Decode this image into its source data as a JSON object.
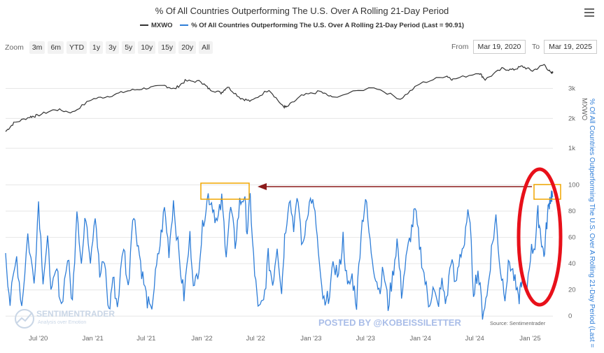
{
  "header": {
    "title": "% Of All Countries Outperforming The U.S. Over A Rolling 21-Day Period",
    "menu_icon": "hamburger-menu-icon"
  },
  "legend": {
    "items": [
      {
        "label": "MXWO",
        "color": "#333333"
      },
      {
        "label": "% Of All Countries Outperforming The U.S. Over A Rolling 21-Day Period (Last = 90.91)",
        "color": "#2f7ed8"
      }
    ]
  },
  "range_selector": {
    "zoom_label": "Zoom",
    "buttons": [
      "3m",
      "6m",
      "YTD",
      "1y",
      "3y",
      "5y",
      "10y",
      "15y",
      "20y",
      "All"
    ],
    "from_label": "From",
    "from_value": "Mar 19, 2020",
    "to_label": "To",
    "to_value": "Mar 19, 2025"
  },
  "watermark": {
    "brand": "SENTIMENTRADER",
    "tagline": "Analysis over Emotion",
    "posted_by": "POSTED BY @KOBEISSILETTER",
    "source": "Source: Sentimentrader"
  },
  "chart_data": [
    {
      "type": "line",
      "series": [
        {
          "name": "MXWO",
          "color": "#333333"
        }
      ],
      "ylabel": "MXWO",
      "y_ticks": [
        1000,
        2000,
        3000
      ],
      "y_tick_labels": [
        "1k",
        "2k",
        "3k"
      ],
      "ylim": [
        0,
        3900
      ],
      "x_ticks": [
        "Jul '20",
        "Jan '21",
        "Jul '21",
        "Jan '22",
        "Jul '22",
        "Jan '23",
        "Jul '23",
        "Jan '24",
        "Jul '24",
        "Jan '25"
      ],
      "xlim": [
        "2020-03-19",
        "2025-03-19"
      ],
      "points": [
        [
          "2020-03-19",
          1560
        ],
        [
          "2020-04-15",
          1840
        ],
        [
          "2020-06-08",
          2050
        ],
        [
          "2020-07-01",
          2090
        ],
        [
          "2020-09-01",
          2300
        ],
        [
          "2020-10-28",
          2200
        ],
        [
          "2020-12-31",
          2640
        ],
        [
          "2021-03-01",
          2750
        ],
        [
          "2021-05-01",
          2920
        ],
        [
          "2021-07-01",
          3010
        ],
        [
          "2021-09-01",
          3090
        ],
        [
          "2021-10-04",
          2980
        ],
        [
          "2021-11-08",
          3250
        ],
        [
          "2021-12-31",
          3230
        ],
        [
          "2022-01-27",
          2980
        ],
        [
          "2022-03-08",
          2850
        ],
        [
          "2022-03-29",
          3060
        ],
        [
          "2022-05-12",
          2680
        ],
        [
          "2022-06-16",
          2570
        ],
        [
          "2022-08-15",
          2970
        ],
        [
          "2022-09-30",
          2400
        ],
        [
          "2022-10-12",
          2370
        ],
        [
          "2022-12-01",
          2750
        ],
        [
          "2023-02-01",
          2900
        ],
        [
          "2023-03-13",
          2700
        ],
        [
          "2023-07-31",
          3050
        ],
        [
          "2023-10-27",
          2650
        ],
        [
          "2023-12-31",
          3160
        ],
        [
          "2024-03-28",
          3430
        ],
        [
          "2024-04-19",
          3300
        ],
        [
          "2024-07-16",
          3530
        ],
        [
          "2024-08-05",
          3300
        ],
        [
          "2024-09-30",
          3660
        ],
        [
          "2024-11-05",
          3620
        ],
        [
          "2024-12-06",
          3740
        ],
        [
          "2025-01-10",
          3590
        ],
        [
          "2025-02-18",
          3800
        ],
        [
          "2025-03-13",
          3500
        ],
        [
          "2025-03-19",
          3560
        ]
      ]
    },
    {
      "type": "line",
      "series": [
        {
          "name": "% Of All Countries Outperforming The U.S. Over A Rolling 21-Day Period",
          "color": "#2f7ed8",
          "last": 90.91
        }
      ],
      "ylabel": "% Of All Countries Outperforming The U.S. Over A Rolling 21-Day Period (Last = ",
      "y_ticks": [
        0,
        20,
        40,
        60,
        80,
        100
      ],
      "ylim": [
        -2,
        104
      ],
      "x_ticks": [
        "Jul '20",
        "Jan '21",
        "Jul '21",
        "Jan '22",
        "Jul '22",
        "Jan '23",
        "Jul '23",
        "Jan '24",
        "Jul '24",
        "Jan '25"
      ],
      "xlim": [
        "2020-03-19",
        "2025-03-19"
      ],
      "points": [
        [
          "2020-03-19",
          48
        ],
        [
          "2020-04-03",
          10
        ],
        [
          "2020-04-25",
          45
        ],
        [
          "2020-05-12",
          8
        ],
        [
          "2020-06-01",
          62
        ],
        [
          "2020-06-22",
          25
        ],
        [
          "2020-07-07",
          88
        ],
        [
          "2020-07-22",
          30
        ],
        [
          "2020-08-06",
          55
        ],
        [
          "2020-08-21",
          18
        ],
        [
          "2020-09-06",
          35
        ],
        [
          "2020-09-21",
          8
        ],
        [
          "2020-10-12",
          45
        ],
        [
          "2020-10-28",
          10
        ],
        [
          "2020-11-12",
          85
        ],
        [
          "2020-11-27",
          40
        ],
        [
          "2020-12-12",
          78
        ],
        [
          "2020-12-27",
          45
        ],
        [
          "2021-01-12",
          80
        ],
        [
          "2021-01-27",
          30
        ],
        [
          "2021-02-12",
          42
        ],
        [
          "2021-02-27",
          2
        ],
        [
          "2021-03-12",
          30
        ],
        [
          "2021-03-27",
          8
        ],
        [
          "2021-04-17",
          55
        ],
        [
          "2021-05-02",
          20
        ],
        [
          "2021-05-17",
          80
        ],
        [
          "2021-06-01",
          60
        ],
        [
          "2021-06-16",
          35
        ],
        [
          "2021-07-01",
          15
        ],
        [
          "2021-07-16",
          2
        ],
        [
          "2021-08-01",
          30
        ],
        [
          "2021-08-16",
          55
        ],
        [
          "2021-08-31",
          82
        ],
        [
          "2021-09-15",
          50
        ],
        [
          "2021-09-30",
          88
        ],
        [
          "2021-10-20",
          42
        ],
        [
          "2021-11-04",
          15
        ],
        [
          "2021-11-24",
          60
        ],
        [
          "2021-12-09",
          20
        ],
        [
          "2021-12-24",
          40
        ],
        [
          "2022-01-09",
          75
        ],
        [
          "2022-01-24",
          92
        ],
        [
          "2022-02-08",
          85
        ],
        [
          "2022-02-23",
          70
        ],
        [
          "2022-03-10",
          88
        ],
        [
          "2022-03-25",
          50
        ],
        [
          "2022-04-09",
          82
        ],
        [
          "2022-04-24",
          55
        ],
        [
          "2022-05-09",
          86
        ],
        [
          "2022-05-24",
          92
        ],
        [
          "2022-06-03",
          65
        ],
        [
          "2022-06-13",
          90
        ],
        [
          "2022-06-28",
          30
        ],
        [
          "2022-07-13",
          4
        ],
        [
          "2022-07-28",
          10
        ],
        [
          "2022-08-12",
          45
        ],
        [
          "2022-08-27",
          25
        ],
        [
          "2022-09-11",
          55
        ],
        [
          "2022-09-26",
          20
        ],
        [
          "2022-10-06",
          60
        ],
        [
          "2022-10-21",
          92
        ],
        [
          "2022-11-05",
          70
        ],
        [
          "2022-11-20",
          88
        ],
        [
          "2022-12-05",
          50
        ],
        [
          "2022-12-20",
          80
        ],
        [
          "2023-01-04",
          90
        ],
        [
          "2023-01-19",
          70
        ],
        [
          "2023-02-03",
          25
        ],
        [
          "2023-02-18",
          5
        ],
        [
          "2023-03-05",
          20
        ],
        [
          "2023-03-20",
          40
        ],
        [
          "2023-04-04",
          30
        ],
        [
          "2023-04-19",
          60
        ],
        [
          "2023-05-04",
          20
        ],
        [
          "2023-05-19",
          30
        ],
        [
          "2023-06-03",
          10
        ],
        [
          "2023-06-18",
          65
        ],
        [
          "2023-07-03",
          90
        ],
        [
          "2023-07-18",
          55
        ],
        [
          "2023-08-02",
          35
        ],
        [
          "2023-08-17",
          20
        ],
        [
          "2023-09-01",
          35
        ],
        [
          "2023-09-16",
          8
        ],
        [
          "2023-10-01",
          30
        ],
        [
          "2023-10-16",
          58
        ],
        [
          "2023-10-31",
          18
        ],
        [
          "2023-11-15",
          42
        ],
        [
          "2023-11-30",
          62
        ],
        [
          "2023-12-15",
          80
        ],
        [
          "2023-12-30",
          55
        ],
        [
          "2024-01-14",
          32
        ],
        [
          "2024-01-29",
          10
        ],
        [
          "2024-02-13",
          20
        ],
        [
          "2024-02-28",
          8
        ],
        [
          "2024-03-14",
          25
        ],
        [
          "2024-03-29",
          10
        ],
        [
          "2024-04-13",
          45
        ],
        [
          "2024-04-28",
          22
        ],
        [
          "2024-05-13",
          48
        ],
        [
          "2024-05-28",
          55
        ],
        [
          "2024-06-12",
          82
        ],
        [
          "2024-06-27",
          20
        ],
        [
          "2024-07-12",
          35
        ],
        [
          "2024-07-27",
          3
        ],
        [
          "2024-08-11",
          15
        ],
        [
          "2024-08-26",
          50
        ],
        [
          "2024-09-10",
          75
        ],
        [
          "2024-09-25",
          35
        ],
        [
          "2024-10-10",
          18
        ],
        [
          "2024-10-25",
          42
        ],
        [
          "2024-11-09",
          30
        ],
        [
          "2024-11-24",
          10
        ],
        [
          "2024-12-04",
          28
        ],
        [
          "2024-12-19",
          15
        ],
        [
          "2025-01-03",
          48
        ],
        [
          "2025-01-18",
          55
        ],
        [
          "2025-01-28",
          78
        ],
        [
          "2025-02-07",
          62
        ],
        [
          "2025-02-17",
          45
        ],
        [
          "2025-02-27",
          72
        ],
        [
          "2025-03-07",
          88
        ],
        [
          "2025-03-14",
          93
        ],
        [
          "2025-03-19",
          90.91
        ]
      ]
    }
  ],
  "annotations": {
    "box_color": "#f0a500",
    "arrow_color": "#8b1a1a",
    "circle_color": "#e8101a"
  }
}
